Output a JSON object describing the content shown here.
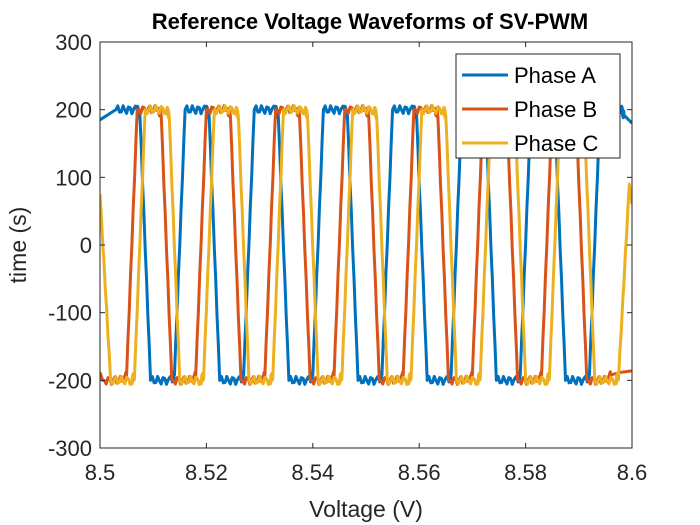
{
  "chart_data": {
    "type": "line",
    "title": "Reference Voltage Waveforms of SV-PWM",
    "xlabel": "Voltage (V)",
    "ylabel": "time (s)",
    "xlim": [
      8.5,
      8.6
    ],
    "ylim": [
      -300,
      300
    ],
    "xticks": [
      8.5,
      8.52,
      8.54,
      8.56,
      8.58,
      8.6
    ],
    "xtick_labels": [
      "8.5",
      "8.52",
      "8.54",
      "8.56",
      "8.58",
      "8.6"
    ],
    "yticks": [
      -300,
      -200,
      -100,
      0,
      100,
      200,
      300
    ],
    "ytick_labels": [
      "-300",
      "-200",
      "-100",
      "0",
      "100",
      "200",
      "300"
    ],
    "grid": false,
    "legend_position": "top-right",
    "amplitude": 200,
    "ripple": 6,
    "series": [
      {
        "name": "Phase A",
        "color": "#0072BD",
        "x": [
          8.5,
          8.503,
          8.507,
          8.5075,
          8.5095,
          8.5135,
          8.514,
          8.516,
          8.52,
          8.5205,
          8.5225,
          8.5265,
          8.527,
          8.529,
          8.533,
          8.5335,
          8.5355,
          8.5395,
          8.54,
          8.542,
          8.546,
          8.5465,
          8.5485,
          8.5525,
          8.553,
          8.555,
          8.559,
          8.5595,
          8.5615,
          8.5655,
          8.566,
          8.568,
          8.572,
          8.5725,
          8.5745,
          8.5785,
          8.579,
          8.581,
          8.585,
          8.5855,
          8.5875,
          8.5915,
          8.592,
          8.594,
          8.598,
          8.5985,
          8.6
        ],
        "y": [
          185,
          200,
          200,
          192,
          -200,
          -200,
          -192,
          200,
          200,
          192,
          -200,
          -200,
          -192,
          200,
          200,
          192,
          -200,
          -200,
          -192,
          200,
          200,
          192,
          -200,
          -200,
          -192,
          200,
          200,
          192,
          -200,
          -200,
          -192,
          200,
          200,
          192,
          -200,
          -200,
          -192,
          200,
          200,
          192,
          -200,
          -200,
          -192,
          200,
          200,
          192,
          180
        ]
      },
      {
        "name": "Phase B",
        "color": "#D95319",
        "x": [
          8.5,
          8.5005,
          8.5045,
          8.505,
          8.507,
          8.511,
          8.5115,
          8.5135,
          8.5175,
          8.518,
          8.52,
          8.524,
          8.5245,
          8.5265,
          8.5305,
          8.531,
          8.533,
          8.537,
          8.5375,
          8.5395,
          8.5435,
          8.544,
          8.546,
          8.55,
          8.5505,
          8.5525,
          8.5565,
          8.557,
          8.559,
          8.563,
          8.5635,
          8.5655,
          8.5695,
          8.57,
          8.572,
          8.576,
          8.5765,
          8.5785,
          8.5825,
          8.583,
          8.585,
          8.589,
          8.5895,
          8.5915,
          8.5955,
          8.596,
          8.598,
          8.6
        ],
        "y": [
          -188,
          -200,
          -200,
          -192,
          200,
          200,
          192,
          -200,
          -200,
          -192,
          200,
          200,
          192,
          -200,
          -200,
          -192,
          200,
          200,
          192,
          -200,
          -200,
          -192,
          200,
          200,
          192,
          -200,
          -200,
          -192,
          200,
          200,
          192,
          -200,
          -200,
          -192,
          200,
          200,
          192,
          -200,
          -200,
          -192,
          200,
          200,
          192,
          -200,
          -200,
          -192,
          -188,
          -186
        ]
      },
      {
        "name": "Phase C",
        "color": "#EDB120",
        "x": [
          8.5,
          8.502,
          8.506,
          8.5065,
          8.5085,
          8.5125,
          8.513,
          8.515,
          8.519,
          8.5195,
          8.5215,
          8.5255,
          8.526,
          8.528,
          8.532,
          8.5325,
          8.5345,
          8.5385,
          8.539,
          8.541,
          8.545,
          8.5455,
          8.5475,
          8.5515,
          8.552,
          8.554,
          8.558,
          8.5585,
          8.5605,
          8.5645,
          8.565,
          8.567,
          8.571,
          8.5715,
          8.5735,
          8.5775,
          8.578,
          8.58,
          8.584,
          8.5845,
          8.5865,
          8.5905,
          8.591,
          8.593,
          8.597,
          8.5975,
          8.5995,
          8.6
        ],
        "y": [
          75,
          -200,
          -200,
          -192,
          200,
          200,
          192,
          -200,
          -200,
          -192,
          200,
          200,
          192,
          -200,
          -200,
          -192,
          200,
          200,
          192,
          -200,
          -200,
          -192,
          200,
          200,
          192,
          -200,
          -200,
          -192,
          200,
          200,
          192,
          -200,
          -200,
          -192,
          200,
          200,
          192,
          -200,
          -200,
          -192,
          200,
          200,
          192,
          -200,
          -200,
          -192,
          90,
          60
        ]
      }
    ]
  }
}
